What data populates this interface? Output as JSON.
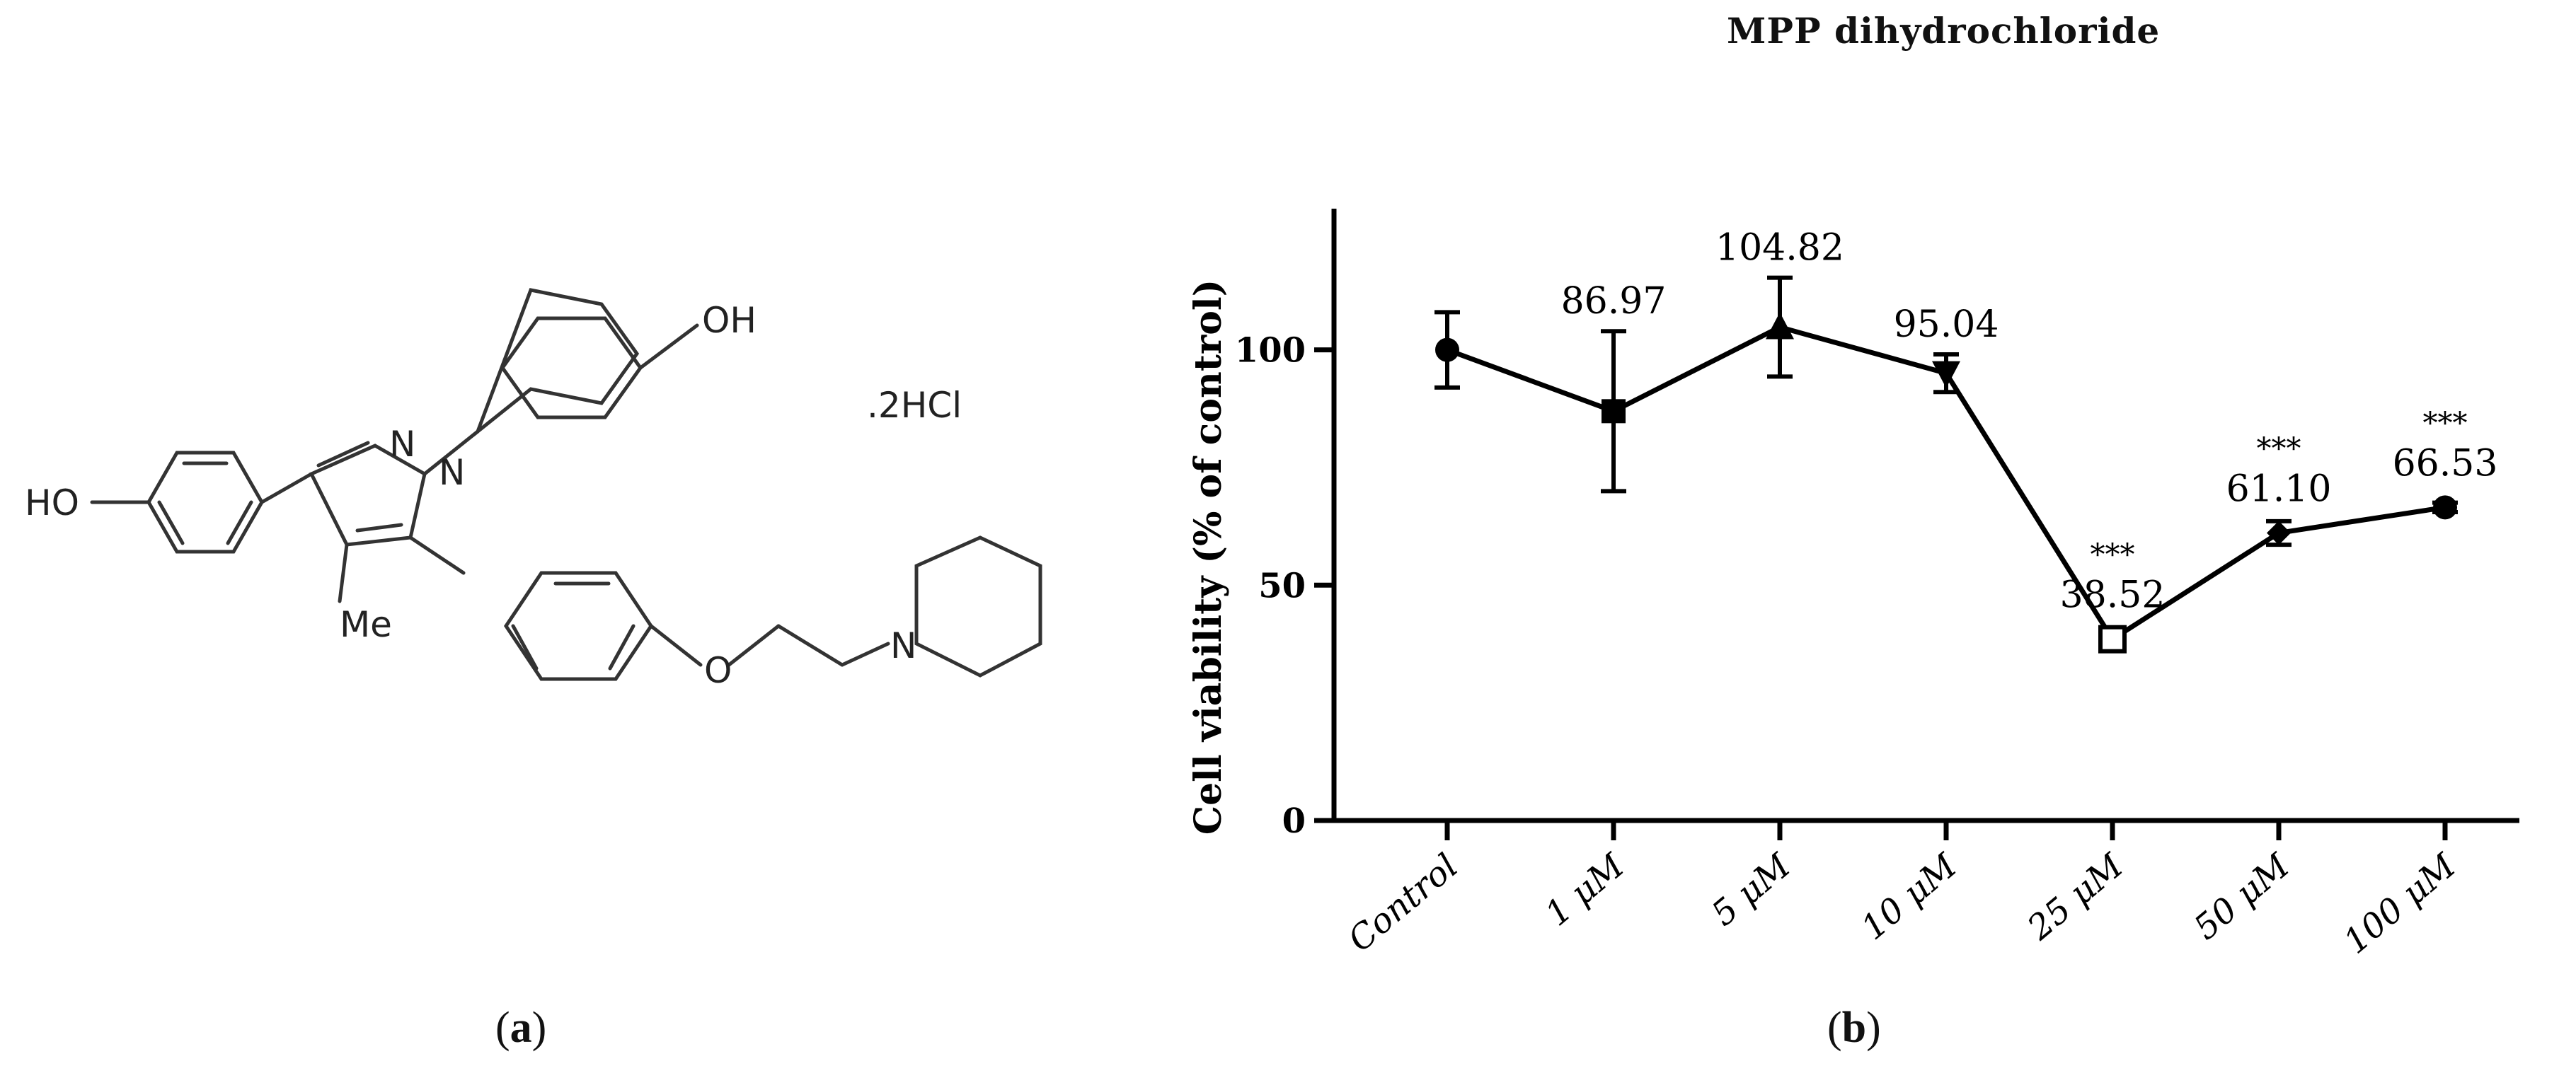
{
  "panels": {
    "a_label": "a",
    "b_label": "b"
  },
  "molecule": {
    "atoms": {
      "oh_top": "OH",
      "ho_left": "HO",
      "n1": "N",
      "n2": "N",
      "methyl": "Me",
      "oxygen": "O",
      "n_piperidine": "N"
    },
    "salt": ".2HCl"
  },
  "chart_data": {
    "type": "line",
    "title": "MPP dihydrochloride",
    "xlabel": "",
    "ylabel": "Cell viability (% of control)",
    "categories": [
      "Control",
      "1 μM",
      "5 μM",
      "10 μM",
      "25 μM",
      "50 μM",
      "100 μM"
    ],
    "values": [
      100,
      86.97,
      104.82,
      95.04,
      38.52,
      61.1,
      66.53
    ],
    "errors": [
      8,
      17,
      10.5,
      4,
      2,
      2.5,
      1
    ],
    "markers": [
      "circle",
      "square",
      "triangle-up",
      "triangle-down",
      "square-open",
      "diamond",
      "circle"
    ],
    "data_labels": [
      "",
      "86.97",
      "104.82",
      "95.04",
      "38.52",
      "61.10",
      "66.53"
    ],
    "significance": [
      "",
      "",
      "",
      "",
      "***",
      "***",
      "***"
    ],
    "ylim": [
      0,
      130
    ],
    "yticks": [
      0,
      50,
      100
    ],
    "grid": false,
    "colors": {
      "line": "#000000",
      "marker": "#000000"
    }
  }
}
